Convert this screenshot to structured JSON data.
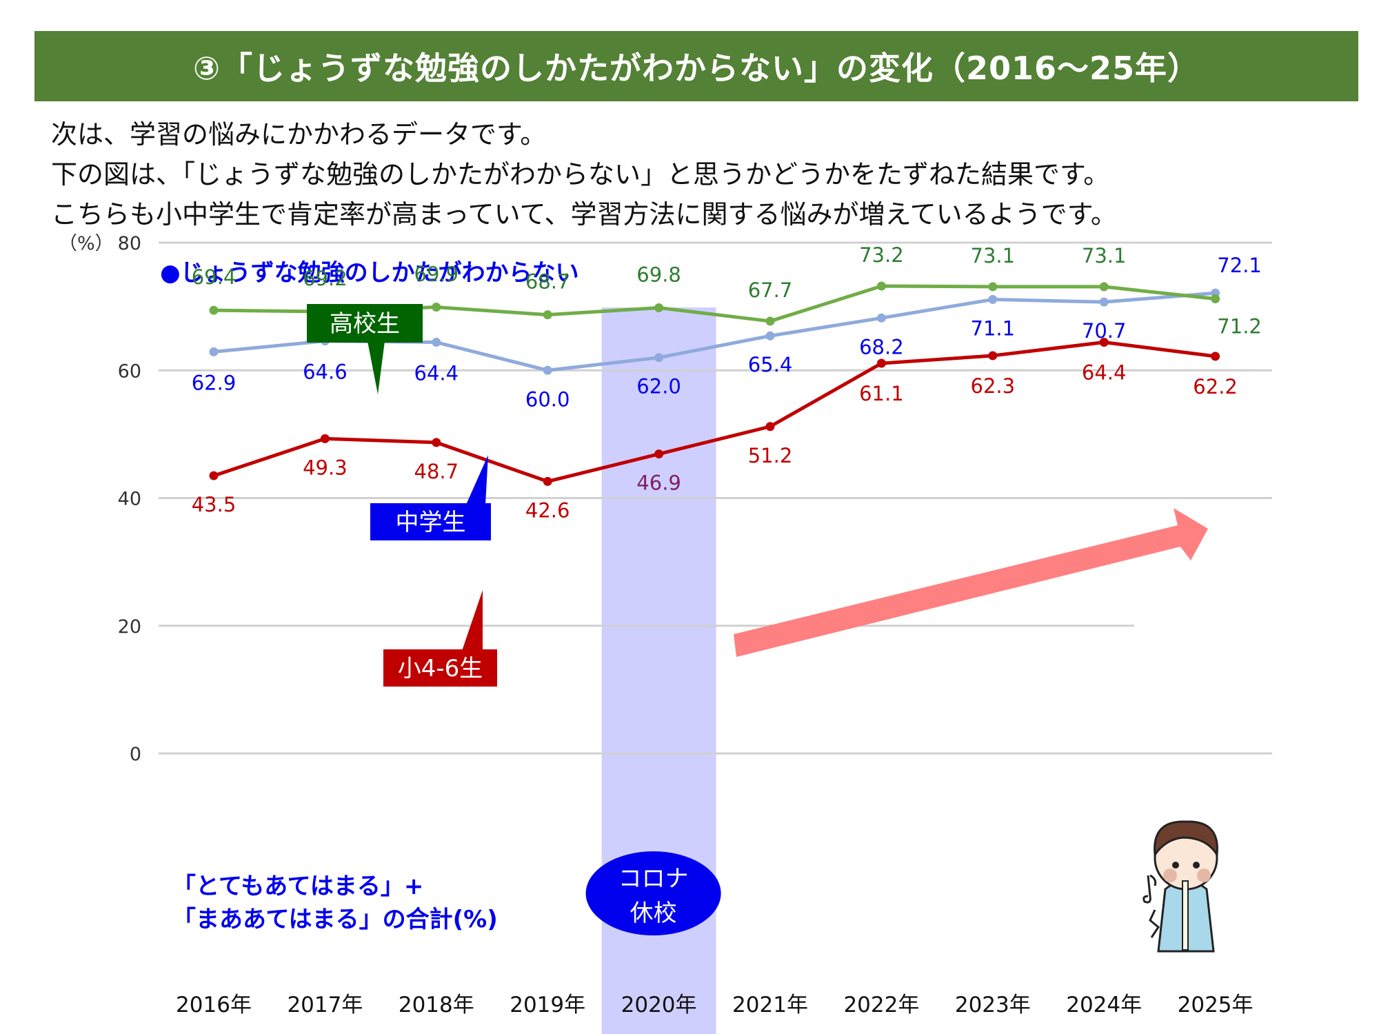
{
  "header": {
    "title": "③「じょうずな勉強のしかたがわからない」の変化（2016～25年）"
  },
  "intro": {
    "lines": [
      "次は、学習の悩みにかかわるデータです。",
      "下の図は、「じょうずな勉強のしかたがわからない」と思うかどうかをたずねた結果です。",
      "こちらも小中学生で肯定率が高まっていて、学習方法に関する悩みが増えているようです。"
    ]
  },
  "note": {
    "line1": "「とてもあてはまる」+",
    "line2": "「まああてはまる」の合計(%)"
  },
  "corona": {
    "line1": "コロナ",
    "line2": "休校"
  },
  "illustration": {
    "icon": "boy-playing-recorder-icon"
  },
  "colors": {
    "header_bg": "#538135",
    "high": "#70ad47",
    "high_label": "#2e7d32",
    "high_tag": "#006400",
    "middle": "#8faadc",
    "middle_label": "#0000ee",
    "middle_tag": "#0000ee",
    "elem": "#c00000",
    "elem_label": "#c00000",
    "elem_tag": "#c00000",
    "corona_band": "#ccccff",
    "corona_badge": "#0000ee",
    "trend_arrow": "#ff8080"
  },
  "chart_data": {
    "type": "line",
    "title": "●じょうずな勉強のしかたがわからない",
    "ylabel": "（%）",
    "xlabel": "",
    "ylim": [
      0,
      80
    ],
    "yticks": [
      0,
      20,
      40,
      60,
      80
    ],
    "grid": true,
    "categories": [
      "2016年",
      "2017年",
      "2018年",
      "2019年",
      "2020年",
      "2021年",
      "2022年",
      "2023年",
      "2024年",
      "2025年"
    ],
    "series": [
      {
        "name": "高校生",
        "key": "high",
        "values": [
          69.4,
          69.2,
          69.9,
          68.7,
          69.8,
          67.7,
          73.2,
          73.1,
          73.1,
          71.2
        ]
      },
      {
        "name": "中学生",
        "key": "middle",
        "values": [
          62.9,
          64.6,
          64.4,
          60.0,
          62.0,
          65.4,
          68.2,
          71.1,
          70.7,
          72.1
        ]
      },
      {
        "name": "小4-6生",
        "key": "elem",
        "values": [
          43.5,
          49.3,
          48.7,
          42.6,
          46.9,
          51.2,
          61.1,
          62.3,
          64.4,
          62.2
        ]
      }
    ],
    "value_labels": {
      "high": [
        "69.4",
        "69.2",
        "69.9",
        "68.7",
        "69.8",
        "67.7",
        "73.2",
        "73.1",
        "73.1",
        "71.2"
      ],
      "middle": [
        "62.9",
        "64.6",
        "64.4",
        "60.0",
        "62.0",
        "65.4",
        "68.2",
        "71.1",
        "70.7",
        "72.1"
      ],
      "elem": [
        "43.5",
        "49.3",
        "48.7",
        "42.6",
        "46.9",
        "51.2",
        "61.1",
        "62.3",
        "64.4",
        "62.2"
      ]
    },
    "highlight_category": "2020年",
    "annotations": [
      "コロナ休校",
      "上昇傾向の矢印"
    ]
  }
}
